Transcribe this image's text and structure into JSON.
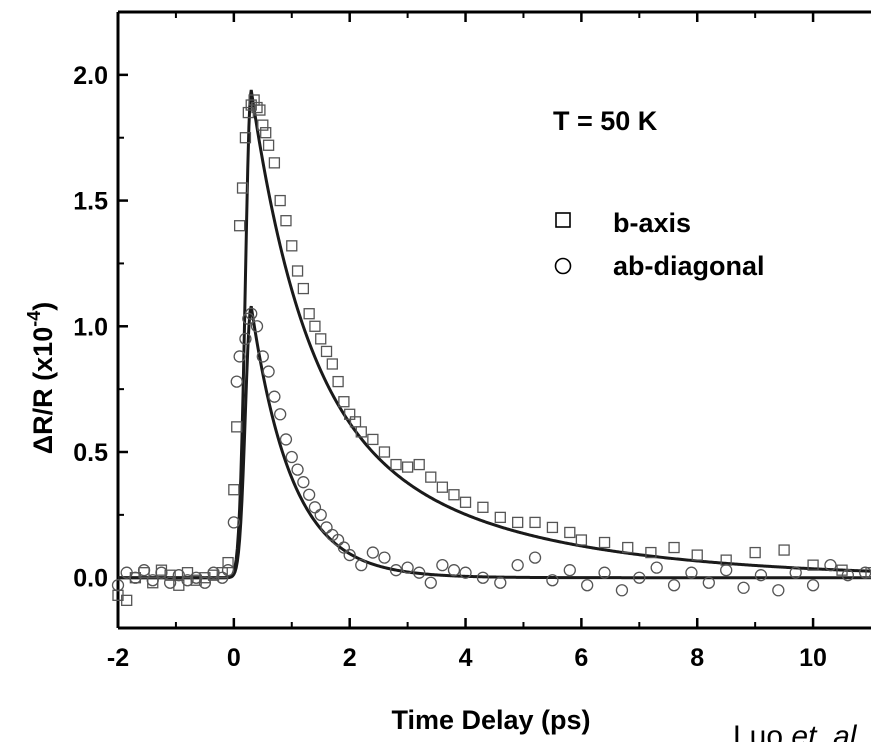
{
  "chart_data": {
    "type": "scatter",
    "xlabel": "Time Delay (ps)",
    "ylabel_main": "ΔR/R (x10",
    "ylabel_exp": "-4",
    "ylabel_close": ")",
    "annotation": "T = 50 K",
    "credit_main": "Luo ",
    "credit_italic": "et. al",
    "xlim": [
      -2,
      11
    ],
    "ylim": [
      -0.2,
      2.25
    ],
    "xticks": [
      -2,
      0,
      2,
      4,
      6,
      8,
      10
    ],
    "xtick_labels": [
      "-2",
      "0",
      "2",
      "4",
      "6",
      "8",
      "10"
    ],
    "yticks": [
      0.0,
      0.5,
      1.0,
      1.5,
      2.0
    ],
    "ytick_labels": [
      "0.0",
      "0.5",
      "1.0",
      "1.5",
      "2.0"
    ],
    "legend": "upper-right",
    "series": [
      {
        "name": "b-axis",
        "marker": "square",
        "points": [
          [
            -2.0,
            -0.07
          ],
          [
            -1.85,
            -0.09
          ],
          [
            -1.7,
            0.0
          ],
          [
            -1.55,
            0.02
          ],
          [
            -1.4,
            -0.02
          ],
          [
            -1.25,
            0.03
          ],
          [
            -1.1,
            0.01
          ],
          [
            -0.95,
            -0.03
          ],
          [
            -0.8,
            0.02
          ],
          [
            -0.65,
            -0.01
          ],
          [
            -0.5,
            0.0
          ],
          [
            -0.35,
            0.01
          ],
          [
            -0.2,
            0.02
          ],
          [
            -0.1,
            0.06
          ],
          [
            0.0,
            0.35
          ],
          [
            0.05,
            0.6
          ],
          [
            0.1,
            1.4
          ],
          [
            0.15,
            1.55
          ],
          [
            0.2,
            1.75
          ],
          [
            0.25,
            1.85
          ],
          [
            0.3,
            1.88
          ],
          [
            0.35,
            1.9
          ],
          [
            0.4,
            1.87
          ],
          [
            0.45,
            1.86
          ],
          [
            0.5,
            1.8
          ],
          [
            0.55,
            1.77
          ],
          [
            0.6,
            1.72
          ],
          [
            0.7,
            1.65
          ],
          [
            0.8,
            1.5
          ],
          [
            0.9,
            1.42
          ],
          [
            1.0,
            1.32
          ],
          [
            1.1,
            1.22
          ],
          [
            1.2,
            1.15
          ],
          [
            1.3,
            1.05
          ],
          [
            1.4,
            1.0
          ],
          [
            1.5,
            0.95
          ],
          [
            1.6,
            0.9
          ],
          [
            1.7,
            0.85
          ],
          [
            1.8,
            0.78
          ],
          [
            1.9,
            0.7
          ],
          [
            2.0,
            0.65
          ],
          [
            2.1,
            0.62
          ],
          [
            2.2,
            0.58
          ],
          [
            2.4,
            0.55
          ],
          [
            2.6,
            0.5
          ],
          [
            2.8,
            0.45
          ],
          [
            3.0,
            0.44
          ],
          [
            3.2,
            0.45
          ],
          [
            3.4,
            0.4
          ],
          [
            3.6,
            0.36
          ],
          [
            3.8,
            0.33
          ],
          [
            4.0,
            0.3
          ],
          [
            4.3,
            0.28
          ],
          [
            4.6,
            0.24
          ],
          [
            4.9,
            0.22
          ],
          [
            5.2,
            0.22
          ],
          [
            5.5,
            0.2
          ],
          [
            5.8,
            0.18
          ],
          [
            6.0,
            0.15
          ],
          [
            6.4,
            0.14
          ],
          [
            6.8,
            0.12
          ],
          [
            7.2,
            0.1
          ],
          [
            7.6,
            0.12
          ],
          [
            8.0,
            0.09
          ],
          [
            8.5,
            0.07
          ],
          [
            9.0,
            0.1
          ],
          [
            9.5,
            0.11
          ],
          [
            10.0,
            0.05
          ],
          [
            10.5,
            0.03
          ],
          [
            11.0,
            0.02
          ]
        ]
      },
      {
        "name": "ab-diagonal",
        "marker": "circle",
        "points": [
          [
            -2.0,
            -0.03
          ],
          [
            -1.85,
            0.02
          ],
          [
            -1.7,
            0.0
          ],
          [
            -1.55,
            0.03
          ],
          [
            -1.4,
            -0.01
          ],
          [
            -1.25,
            0.02
          ],
          [
            -1.1,
            -0.02
          ],
          [
            -0.95,
            0.01
          ],
          [
            -0.8,
            -0.01
          ],
          [
            -0.65,
            0.0
          ],
          [
            -0.5,
            -0.02
          ],
          [
            -0.35,
            0.02
          ],
          [
            -0.2,
            0.0
          ],
          [
            -0.1,
            0.03
          ],
          [
            0.0,
            0.22
          ],
          [
            0.05,
            0.78
          ],
          [
            0.1,
            0.88
          ],
          [
            0.2,
            0.95
          ],
          [
            0.25,
            1.03
          ],
          [
            0.3,
            1.05
          ],
          [
            0.4,
            1.0
          ],
          [
            0.5,
            0.88
          ],
          [
            0.6,
            0.82
          ],
          [
            0.7,
            0.72
          ],
          [
            0.8,
            0.65
          ],
          [
            0.9,
            0.55
          ],
          [
            1.0,
            0.48
          ],
          [
            1.1,
            0.43
          ],
          [
            1.2,
            0.38
          ],
          [
            1.3,
            0.33
          ],
          [
            1.4,
            0.28
          ],
          [
            1.5,
            0.25
          ],
          [
            1.6,
            0.2
          ],
          [
            1.7,
            0.17
          ],
          [
            1.8,
            0.15
          ],
          [
            1.9,
            0.12
          ],
          [
            2.0,
            0.09
          ],
          [
            2.2,
            0.05
          ],
          [
            2.4,
            0.1
          ],
          [
            2.6,
            0.08
          ],
          [
            2.8,
            0.03
          ],
          [
            3.0,
            0.04
          ],
          [
            3.2,
            0.02
          ],
          [
            3.4,
            -0.02
          ],
          [
            3.6,
            0.05
          ],
          [
            3.8,
            0.03
          ],
          [
            4.0,
            0.02
          ],
          [
            4.3,
            0.0
          ],
          [
            4.6,
            -0.02
          ],
          [
            4.9,
            0.05
          ],
          [
            5.2,
            0.08
          ],
          [
            5.5,
            -0.01
          ],
          [
            5.8,
            0.03
          ],
          [
            6.1,
            -0.03
          ],
          [
            6.4,
            0.02
          ],
          [
            6.7,
            -0.05
          ],
          [
            7.0,
            0.0
          ],
          [
            7.3,
            0.04
          ],
          [
            7.6,
            -0.03
          ],
          [
            7.9,
            0.02
          ],
          [
            8.2,
            -0.02
          ],
          [
            8.5,
            0.03
          ],
          [
            8.8,
            -0.04
          ],
          [
            9.1,
            0.01
          ],
          [
            9.4,
            -0.05
          ],
          [
            9.7,
            0.02
          ],
          [
            10.0,
            -0.03
          ],
          [
            10.3,
            0.05
          ],
          [
            10.6,
            0.01
          ],
          [
            10.9,
            0.02
          ]
        ]
      }
    ],
    "fits": [
      {
        "series": "b-axis",
        "peak_x": 0.3,
        "peak_y": 1.94,
        "rise": 0.15,
        "tau1": 0.9,
        "a1": 0.62,
        "tau2": 3.2,
        "a2": 0.38
      },
      {
        "series": "ab-diagonal",
        "peak_x": 0.3,
        "peak_y": 1.08,
        "rise": 0.15,
        "tau1": 0.7,
        "a1": 1.0,
        "tau2": 3.0,
        "a2": 0.0
      }
    ]
  }
}
